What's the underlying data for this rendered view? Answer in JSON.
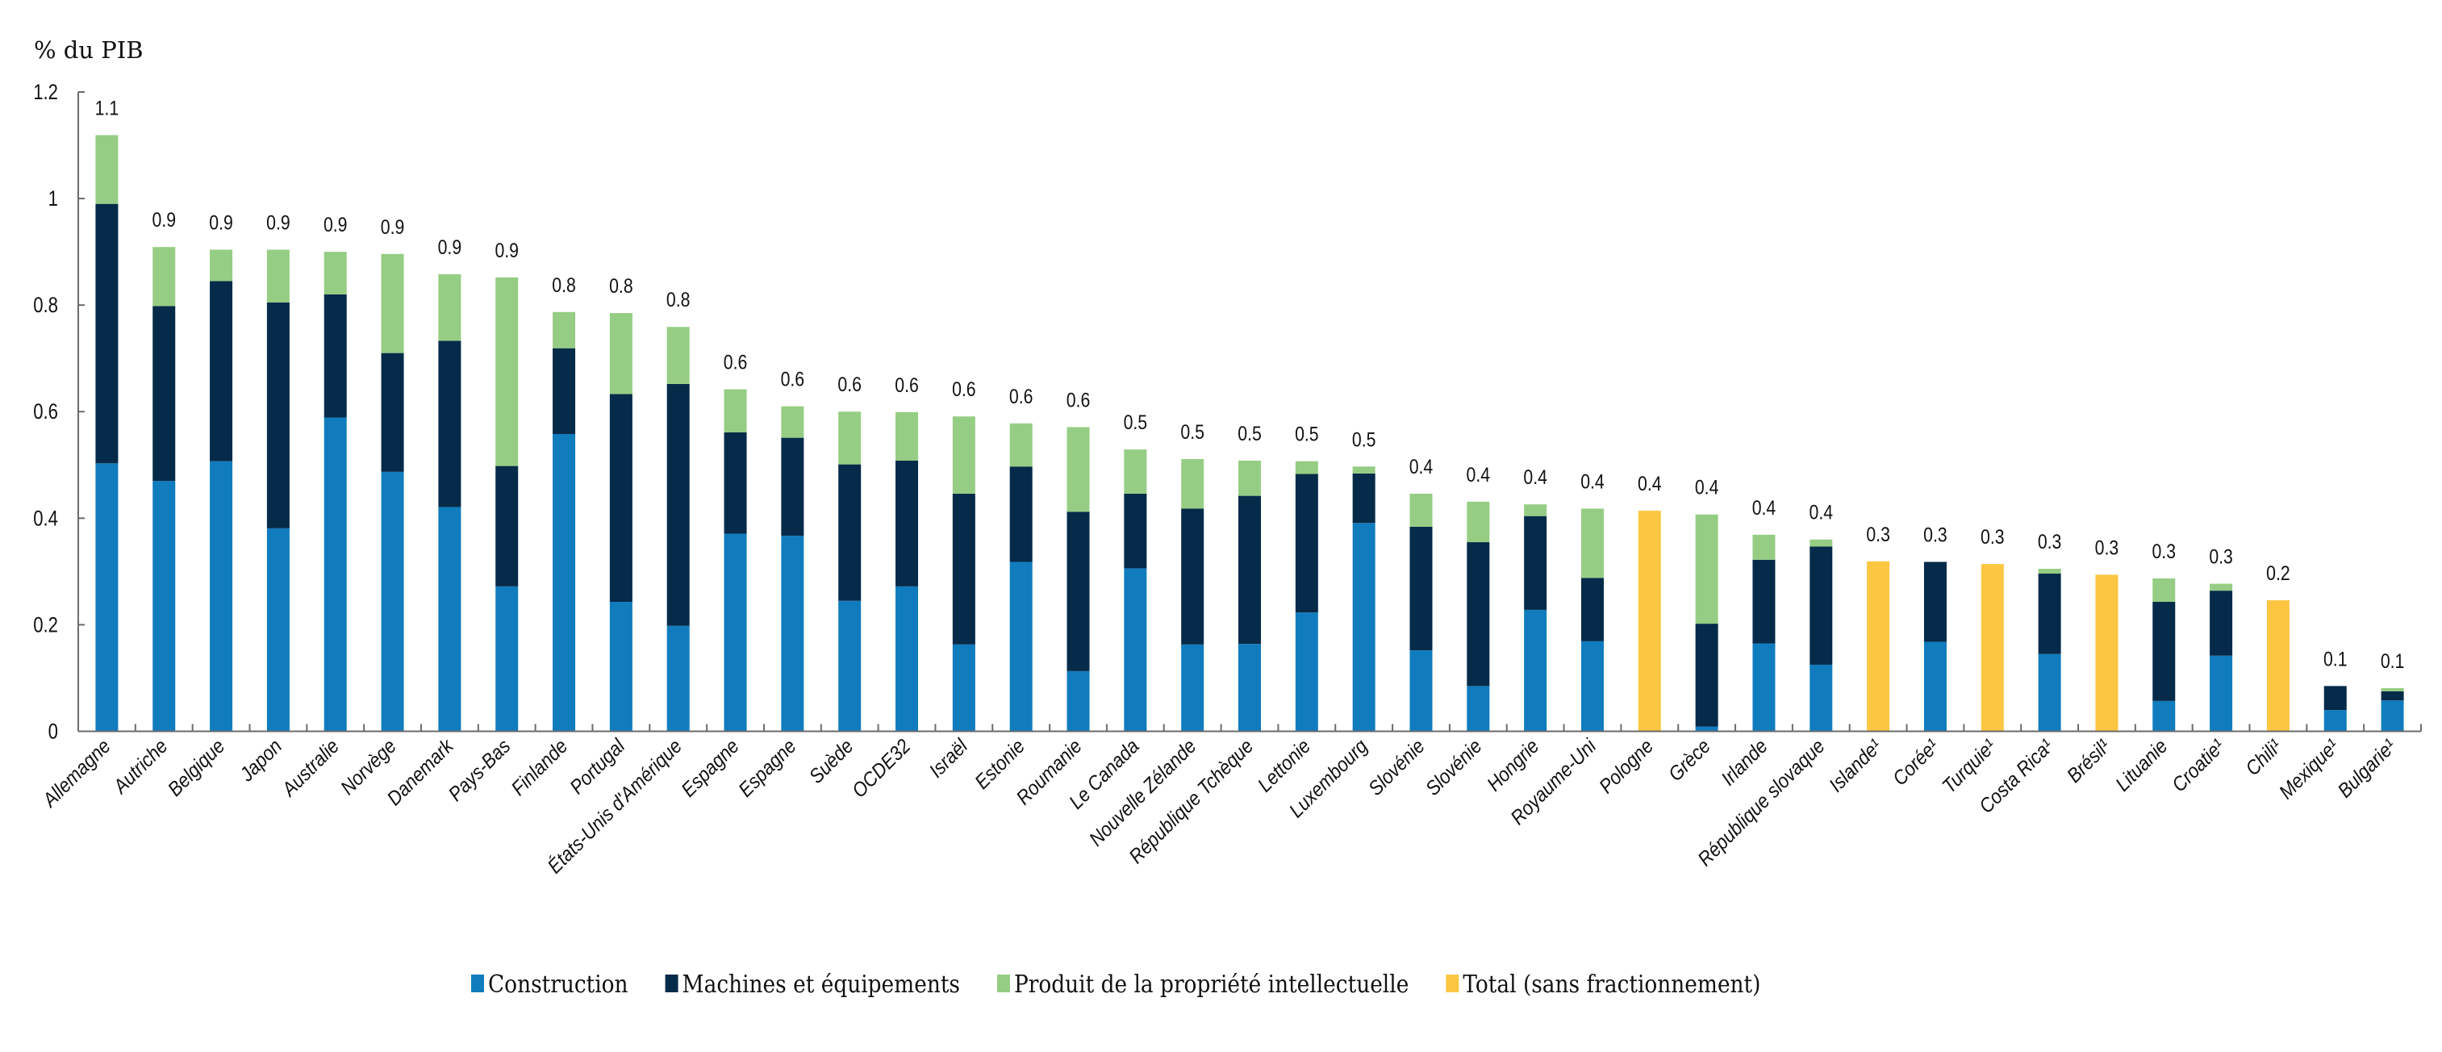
{
  "chart_data": {
    "type": "bar",
    "stacked": true,
    "title": "",
    "ylabel": "% du PIB",
    "xlabel": "",
    "ylim": [
      0,
      1.2
    ],
    "yticks": [
      0,
      0.2,
      0.4,
      0.6,
      0.8,
      1,
      1.2
    ],
    "ytick_labels": [
      "0",
      "0.2",
      "0.4",
      "0.6",
      "0.8",
      "1",
      "1.2"
    ],
    "grid": false,
    "legend_position": "bottom-center",
    "categories": [
      "Allemagne",
      "Autriche",
      "Belgique",
      "Japon",
      "Australie",
      "Norvège",
      "Danemark",
      "Pays-Bas",
      "Finlande",
      "Portugal",
      "États-Unis d'Amérique",
      "Espagne",
      "Espagne",
      "Suède",
      "OCDE32",
      "Israël",
      "Estonie",
      "Roumanie",
      "Le Canada",
      "Nouvelle Zélande",
      "République Tchèque",
      "Lettonie",
      "Luxembourg",
      "Slovénie",
      "Slovénie",
      "Hongrie",
      "Royaume-Uni",
      "Pologne",
      "Grèce",
      "Irlande",
      "République slovaque",
      "Islande¹",
      "Corée¹",
      "Turquie¹",
      "Costa Rica¹",
      "Brésil¹",
      "Lituanie",
      "Croatie¹",
      "Chili¹",
      "Mexique¹",
      "Bulgarie¹"
    ],
    "series": [
      {
        "name": "Construction",
        "color": "#107cbd",
        "values": [
          0.503,
          0.47,
          0.507,
          0.381,
          0.589,
          0.487,
          0.421,
          0.272,
          0.558,
          0.243,
          0.198,
          0.371,
          0.367,
          0.245,
          0.272,
          0.163,
          0.318,
          0.113,
          0.306,
          0.163,
          0.164,
          0.223,
          0.391,
          0.152,
          0.085,
          0.228,
          0.169,
          null,
          0.009,
          0.165,
          0.125,
          null,
          0.168,
          null,
          0.145,
          null,
          0.057,
          0.142,
          null,
          0.04,
          0.058
        ]
      },
      {
        "name": "Machines et équipements",
        "color": "#062a49",
        "values": [
          0.487,
          0.328,
          0.338,
          0.424,
          0.231,
          0.223,
          0.312,
          0.226,
          0.161,
          0.39,
          0.454,
          0.19,
          0.184,
          0.256,
          0.236,
          0.283,
          0.179,
          0.299,
          0.14,
          0.255,
          0.278,
          0.26,
          0.093,
          0.232,
          0.27,
          0.176,
          0.119,
          null,
          0.193,
          0.157,
          0.222,
          null,
          0.15,
          null,
          0.151,
          null,
          0.186,
          0.122,
          null,
          0.045,
          0.017
        ]
      },
      {
        "name": "Produit de la propriété intellectuelle",
        "color": "#96cd84",
        "values": [
          0.129,
          0.111,
          0.059,
          0.099,
          0.08,
          0.186,
          0.125,
          0.354,
          0.068,
          0.152,
          0.107,
          0.081,
          0.059,
          0.099,
          0.091,
          0.145,
          0.081,
          0.159,
          0.083,
          0.093,
          0.066,
          0.024,
          0.013,
          0.062,
          0.076,
          0.022,
          0.13,
          null,
          0.205,
          0.047,
          0.013,
          null,
          0.0,
          null,
          0.009,
          null,
          0.044,
          0.013,
          null,
          0.0,
          0.006
        ]
      },
      {
        "name": "Total (sans fractionnement)",
        "color": "#fcc642",
        "values": [
          null,
          null,
          null,
          null,
          null,
          null,
          null,
          null,
          null,
          null,
          null,
          null,
          null,
          null,
          null,
          null,
          null,
          null,
          null,
          null,
          null,
          null,
          null,
          null,
          null,
          null,
          null,
          0.414,
          null,
          null,
          null,
          0.319,
          null,
          0.314,
          null,
          0.294,
          null,
          null,
          0.246,
          null,
          null
        ]
      }
    ],
    "data_labels": [
      "1.1",
      "0.9",
      "0.9",
      "0.9",
      "0.9",
      "0.9",
      "0.9",
      "0.9",
      "0.8",
      "0.8",
      "0.8",
      "0.6",
      "0.6",
      "0.6",
      "0.6",
      "0.6",
      "0.6",
      "0.6",
      "0.5",
      "0.5",
      "0.5",
      "0.5",
      "0.5",
      "0.4",
      "0.4",
      "0.4",
      "0.4",
      "0.4",
      "0.4",
      "0.4",
      "0.4",
      "0.3",
      "0.3",
      "0.3",
      "0.3",
      "0.3",
      "0.3",
      "0.3",
      "0.2",
      "0.1",
      "0.1"
    ]
  },
  "legend": {
    "items": [
      {
        "label": "Construction",
        "color": "#107cbd"
      },
      {
        "label": "Machines et équipements",
        "color": "#062a49"
      },
      {
        "label": "Produit de la propriété intellectuelle",
        "color": "#96cd84"
      },
      {
        "label": "Total (sans fractionnement)",
        "color": "#fcc642"
      }
    ]
  }
}
